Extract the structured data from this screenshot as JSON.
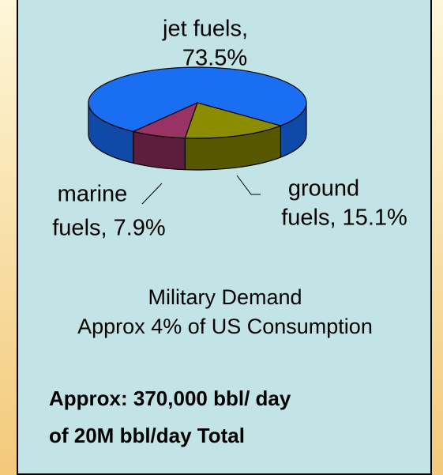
{
  "chart_data": {
    "type": "pie",
    "values": [
      73.5,
      15.1,
      7.9
    ],
    "value_labels": [
      [
        "jet fuels,",
        "73.5%"
      ],
      [
        "ground",
        "fuels, 15.1%"
      ],
      [
        "marine",
        "fuels, 7.9%"
      ]
    ],
    "colors": [
      "#1a6ef2",
      "#8c8c00",
      "#993366"
    ],
    "side_colors": [
      "#0f4aa8",
      "#575700",
      "#5c1e3c"
    ],
    "annotations": [
      "Military Demand",
      "Approx 4% of US Consumption"
    ],
    "notes": [
      "Approx: 370,000 bbl/ day",
      "of 20M bbl/day Total"
    ]
  }
}
